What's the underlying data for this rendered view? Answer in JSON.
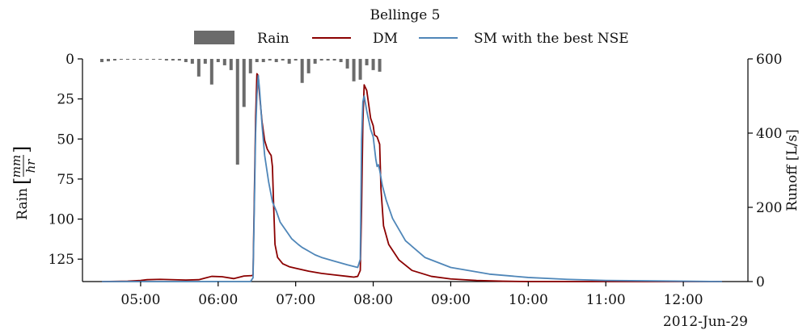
{
  "chart_data": {
    "type": "bar+line",
    "title": "Bellinge 5",
    "legend_position": "top-center",
    "legend": [
      "Rain",
      "DM",
      "SM with the best NSE"
    ],
    "x_axis": {
      "type": "time",
      "range": [
        "04:15",
        "12:50"
      ],
      "tick_labels": [
        "05:00",
        "06:00",
        "07:00",
        "08:00",
        "09:00",
        "10:00",
        "11:00",
        "12:00"
      ],
      "date_label": "2012-Jun-29"
    },
    "left_axis": {
      "label_prefix": "Rain",
      "label_fraction_numerator": "mm",
      "label_fraction_denominator": "hr",
      "inverted": true,
      "range": [
        0,
        139
      ],
      "ticks": [
        0,
        25,
        50,
        75,
        100,
        125
      ]
    },
    "right_axis": {
      "label": "Runoff [L/s]",
      "range": [
        0,
        600
      ],
      "ticks": [
        0,
        200,
        400,
        600
      ]
    },
    "colors": {
      "rain": "#6b6b6b",
      "dm": "#8b0000",
      "sm": "#4f86b8"
    },
    "series": [
      {
        "name": "Rain",
        "kind": "bar",
        "axis": "left",
        "points": [
          [
            "04:30",
            2
          ],
          [
            "04:35",
            1.5
          ],
          [
            "04:40",
            1
          ],
          [
            "04:45",
            0.5
          ],
          [
            "04:50",
            0.5
          ],
          [
            "04:55",
            0.5
          ],
          [
            "05:00",
            0.5
          ],
          [
            "05:05",
            0.5
          ],
          [
            "05:10",
            0.5
          ],
          [
            "05:15",
            0.5
          ],
          [
            "05:20",
            1
          ],
          [
            "05:25",
            1
          ],
          [
            "05:30",
            1
          ],
          [
            "05:35",
            2
          ],
          [
            "05:40",
            3
          ],
          [
            "05:45",
            11
          ],
          [
            "05:50",
            3
          ],
          [
            "05:55",
            16
          ],
          [
            "06:00",
            2
          ],
          [
            "06:05",
            4
          ],
          [
            "06:10",
            7
          ],
          [
            "06:15",
            66
          ],
          [
            "06:20",
            30
          ],
          [
            "06:25",
            9
          ],
          [
            "06:30",
            2
          ],
          [
            "06:35",
            2
          ],
          [
            "06:40",
            1
          ],
          [
            "06:45",
            2
          ],
          [
            "06:50",
            1
          ],
          [
            "06:55",
            3
          ],
          [
            "07:00",
            1
          ],
          [
            "07:05",
            15
          ],
          [
            "07:10",
            9
          ],
          [
            "07:15",
            3
          ],
          [
            "07:20",
            1
          ],
          [
            "07:25",
            1
          ],
          [
            "07:30",
            1
          ],
          [
            "07:35",
            2
          ],
          [
            "07:40",
            6
          ],
          [
            "07:45",
            14
          ],
          [
            "07:50",
            13
          ],
          [
            "07:55",
            4
          ],
          [
            "08:00",
            7
          ],
          [
            "08:05",
            8
          ]
        ]
      },
      {
        "name": "DM",
        "kind": "line",
        "axis": "right",
        "points": [
          [
            "04:30",
            0
          ],
          [
            "04:50",
            1
          ],
          [
            "05:00",
            3
          ],
          [
            "05:05",
            5
          ],
          [
            "05:15",
            6
          ],
          [
            "05:35",
            4
          ],
          [
            "05:45",
            5
          ],
          [
            "05:55",
            14
          ],
          [
            "06:03",
            13
          ],
          [
            "06:12",
            8
          ],
          [
            "06:20",
            15
          ],
          [
            "06:26",
            16
          ],
          [
            "06:27",
            18
          ],
          [
            "06:29",
            440
          ],
          [
            "06:30",
            560
          ],
          [
            "06:31",
            555
          ],
          [
            "06:32",
            505
          ],
          [
            "06:34",
            430
          ],
          [
            "06:36",
            380
          ],
          [
            "06:38",
            357
          ],
          [
            "06:40",
            345
          ],
          [
            "06:41",
            340
          ],
          [
            "06:42",
            310
          ],
          [
            "06:43",
            200
          ],
          [
            "06:44",
            100
          ],
          [
            "06:46",
            65
          ],
          [
            "06:50",
            48
          ],
          [
            "06:55",
            40
          ],
          [
            "07:00",
            36
          ],
          [
            "07:10",
            28
          ],
          [
            "07:20",
            22
          ],
          [
            "07:30",
            18
          ],
          [
            "07:40",
            14
          ],
          [
            "07:45",
            12
          ],
          [
            "07:48",
            14
          ],
          [
            "07:50",
            30
          ],
          [
            "07:51",
            200
          ],
          [
            "07:52",
            430
          ],
          [
            "07:53",
            530
          ],
          [
            "07:55",
            515
          ],
          [
            "07:58",
            440
          ],
          [
            "08:00",
            420
          ],
          [
            "08:01",
            395
          ],
          [
            "08:03",
            390
          ],
          [
            "08:05",
            370
          ],
          [
            "08:06",
            250
          ],
          [
            "08:08",
            150
          ],
          [
            "08:12",
            100
          ],
          [
            "08:20",
            58
          ],
          [
            "08:30",
            30
          ],
          [
            "08:45",
            14
          ],
          [
            "09:00",
            7
          ],
          [
            "09:20",
            3
          ],
          [
            "09:40",
            1
          ],
          [
            "10:00",
            0
          ],
          [
            "12:30",
            0
          ]
        ]
      },
      {
        "name": "SM with the best NSE",
        "kind": "line",
        "axis": "right",
        "points": [
          [
            "04:30",
            0
          ],
          [
            "06:25",
            0
          ],
          [
            "06:26",
            5
          ],
          [
            "06:27",
            10
          ],
          [
            "06:28",
            200
          ],
          [
            "06:29",
            400
          ],
          [
            "06:30",
            500
          ],
          [
            "06:31",
            555
          ],
          [
            "06:32",
            520
          ],
          [
            "06:34",
            420
          ],
          [
            "06:36",
            340
          ],
          [
            "06:39",
            270
          ],
          [
            "06:42",
            215
          ],
          [
            "06:45",
            190
          ],
          [
            "06:48",
            160
          ],
          [
            "06:50",
            150
          ],
          [
            "06:53",
            135
          ],
          [
            "06:57",
            115
          ],
          [
            "07:02",
            100
          ],
          [
            "07:05",
            92
          ],
          [
            "07:10",
            82
          ],
          [
            "07:15",
            72
          ],
          [
            "07:20",
            65
          ],
          [
            "07:30",
            55
          ],
          [
            "07:40",
            45
          ],
          [
            "07:48",
            38
          ],
          [
            "07:50",
            60
          ],
          [
            "07:51",
            380
          ],
          [
            "07:52",
            485
          ],
          [
            "07:53",
            500
          ],
          [
            "07:55",
            460
          ],
          [
            "07:58",
            410
          ],
          [
            "08:00",
            390
          ],
          [
            "08:02",
            330
          ],
          [
            "08:03",
            310
          ],
          [
            "08:04",
            315
          ],
          [
            "08:05",
            300
          ],
          [
            "08:07",
            260
          ],
          [
            "08:10",
            220
          ],
          [
            "08:15",
            170
          ],
          [
            "08:25",
            110
          ],
          [
            "08:40",
            65
          ],
          [
            "09:00",
            38
          ],
          [
            "09:30",
            20
          ],
          [
            "10:00",
            11
          ],
          [
            "10:30",
            6
          ],
          [
            "11:00",
            3
          ],
          [
            "11:30",
            2
          ],
          [
            "12:00",
            1
          ],
          [
            "12:30",
            0
          ]
        ]
      }
    ]
  }
}
